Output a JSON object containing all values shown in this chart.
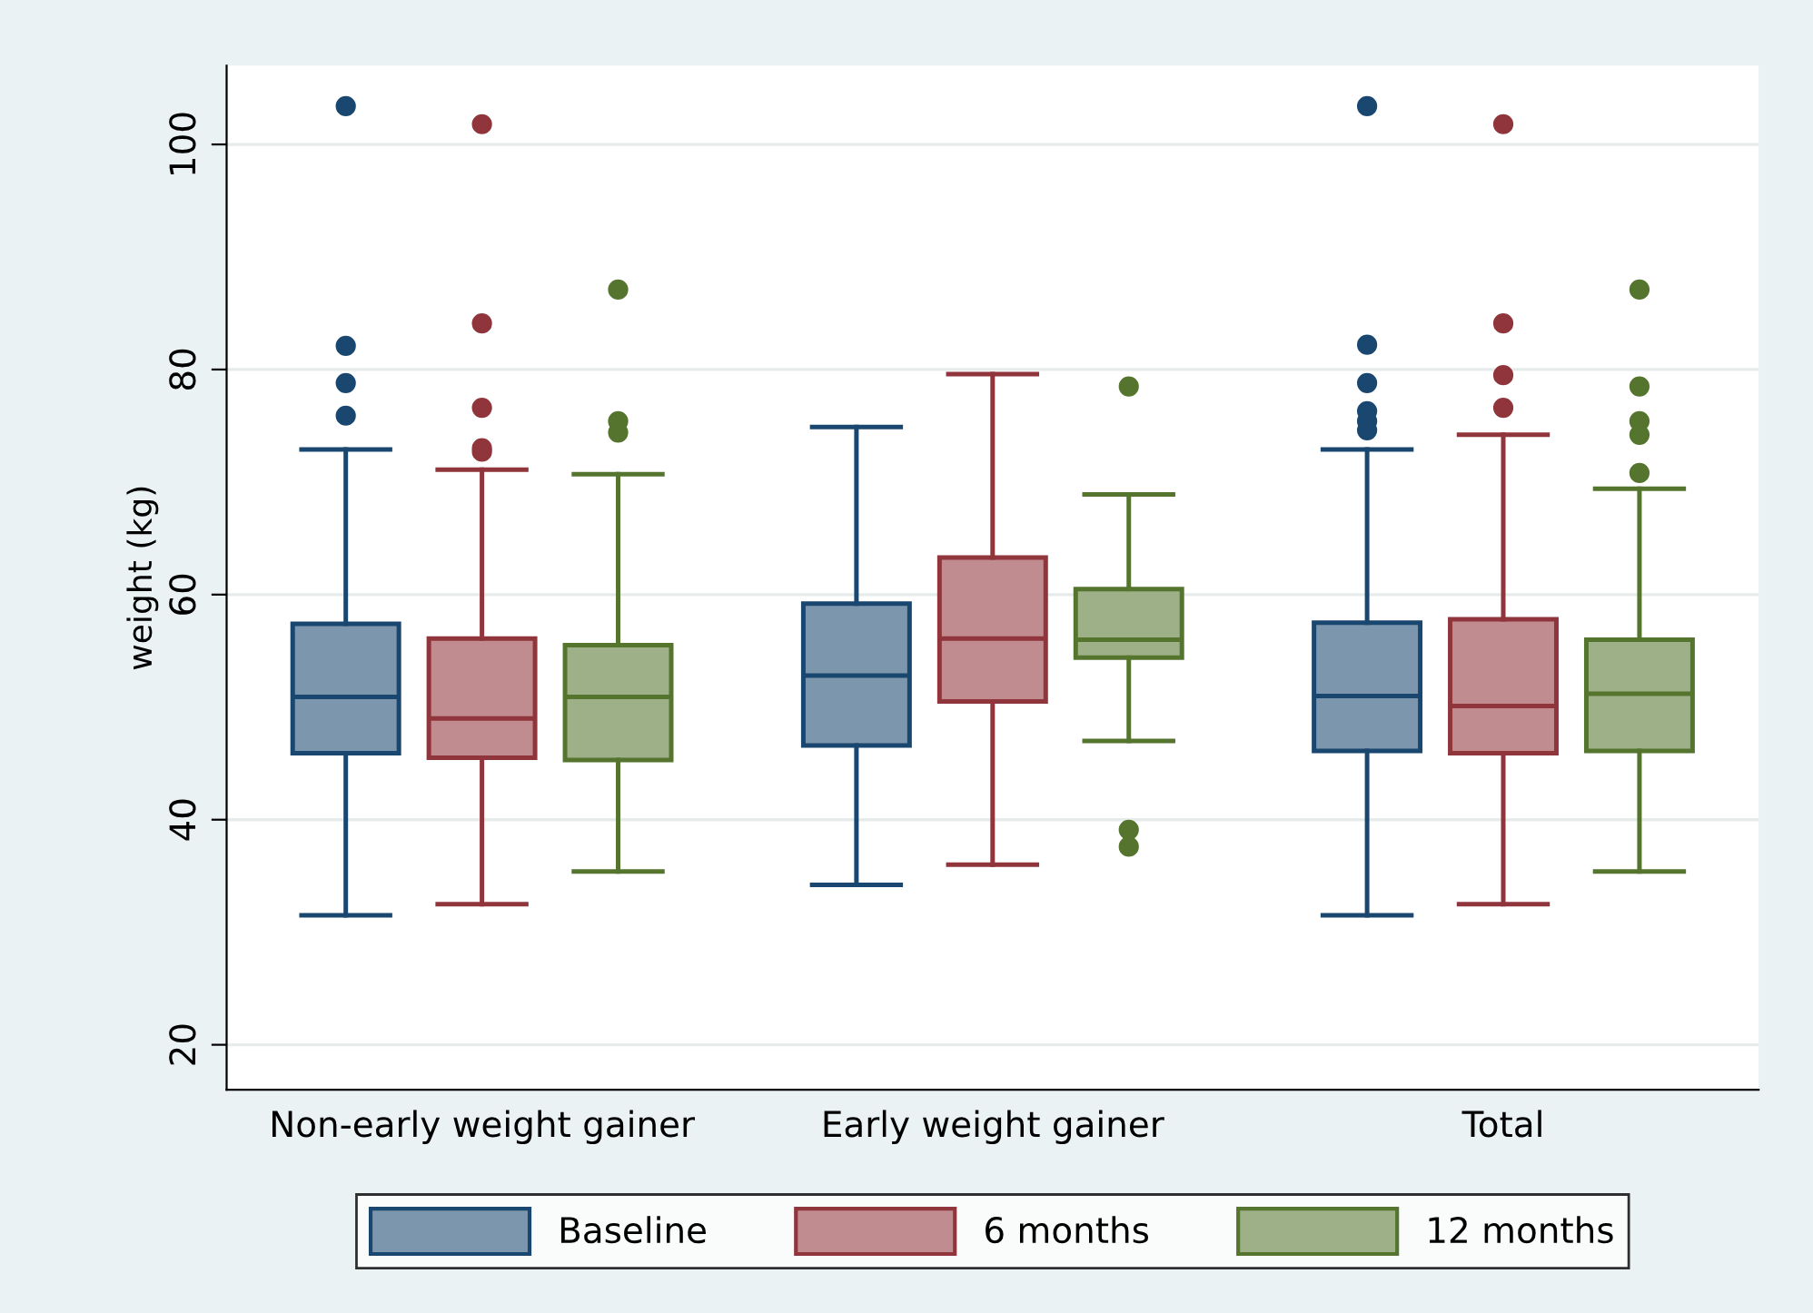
{
  "chart_data": {
    "type": "box",
    "ylabel": "weight (kg)",
    "categories": [
      "Non-early weight gainer",
      "Early weight gainer",
      "Total"
    ],
    "ylim": [
      16,
      107
    ],
    "yticks": [
      20,
      40,
      60,
      80,
      100
    ],
    "grid": "y",
    "legend": "bottom",
    "series": [
      {
        "name": "Baseline",
        "color": "#1a476f",
        "boxes": [
          {
            "low": 31.5,
            "q1": 45.9,
            "median": 50.9,
            "q3": 57.4,
            "high": 72.9,
            "outliers": [
              75.9,
              78.8,
              82.1,
              103.4
            ]
          },
          {
            "low": 34.2,
            "q1": 46.6,
            "median": 52.8,
            "q3": 59.2,
            "high": 74.9
          },
          {
            "low": 31.5,
            "q1": 46.1,
            "median": 51.0,
            "q3": 57.5,
            "high": 72.9,
            "outliers": [
              74.6,
              75.4,
              76.3,
              78.8,
              82.2,
              103.4
            ]
          }
        ]
      },
      {
        "name": "6 months",
        "color": "#90353b",
        "boxes": [
          {
            "low": 32.5,
            "q1": 45.5,
            "median": 49.0,
            "q3": 56.1,
            "high": 71.1,
            "outliers": [
              72.7,
              73.0,
              76.6,
              84.1,
              101.8
            ]
          },
          {
            "low": 36.0,
            "q1": 50.5,
            "median": 56.1,
            "q3": 63.3,
            "high": 79.6
          },
          {
            "low": 32.5,
            "q1": 45.9,
            "median": 50.1,
            "q3": 57.8,
            "high": 74.2,
            "outliers": [
              76.6,
              79.5,
              84.1,
              101.8
            ]
          }
        ]
      },
      {
        "name": "12 months",
        "color": "#55752f",
        "boxes": [
          {
            "low": 35.4,
            "q1": 45.3,
            "median": 50.9,
            "q3": 55.5,
            "high": 70.7,
            "outliers": [
              74.4,
              75.4,
              87.1
            ]
          },
          {
            "low": 47.0,
            "q1": 54.4,
            "median": 56.0,
            "q3": 60.5,
            "high": 68.9,
            "outliers": [
              37.6,
              39.1,
              78.5
            ]
          },
          {
            "low": 35.4,
            "q1": 46.1,
            "median": 51.2,
            "q3": 56.0,
            "high": 69.4,
            "outliers": [
              70.8,
              74.2,
              75.4,
              78.5,
              87.1
            ]
          }
        ]
      }
    ]
  }
}
